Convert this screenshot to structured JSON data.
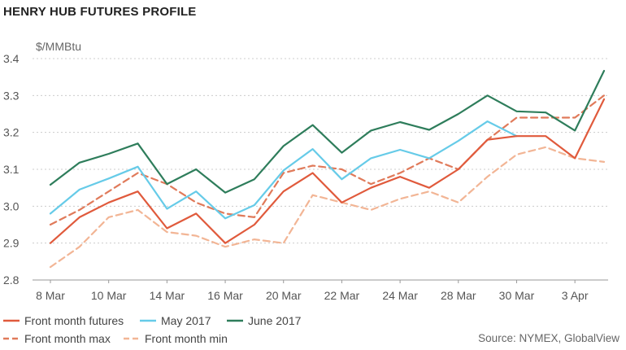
{
  "title": "HENRY HUB FUTURES PROFILE",
  "source": "Source: NYMEX, GlobalView",
  "colors": {
    "front": "#e05a3c",
    "may": "#66cbe8",
    "june": "#2e7d5b",
    "max": "#e07a5a",
    "min": "#f2b595",
    "grid": "#cccccc",
    "axis": "#999999"
  },
  "chart_data": {
    "type": "line",
    "ylabel": "$/MMBtu",
    "ylim": [
      2.8,
      3.4
    ],
    "yticks": [
      2.8,
      2.9,
      3.0,
      3.1,
      3.2,
      3.3,
      3.4
    ],
    "ytick_labels": [
      "2.8",
      "2.9",
      "3.0",
      "3.1",
      "3.2",
      "3.3",
      "3.4"
    ],
    "x": [
      "8 Mar",
      "9 Mar",
      "10 Mar",
      "13 Mar",
      "14 Mar",
      "15 Mar",
      "16 Mar",
      "17 Mar",
      "20 Mar",
      "21 Mar",
      "22 Mar",
      "23 Mar",
      "24 Mar",
      "27 Mar",
      "28 Mar",
      "29 Mar",
      "30 Mar",
      "31 Mar",
      "3 Apr",
      "4 Apr"
    ],
    "xtick_labels": [
      "8 Mar",
      "10 Mar",
      "14 Mar",
      "16 Mar",
      "20 Mar",
      "22 Mar",
      "24 Mar",
      "28 Mar",
      "30 Mar",
      "3 Apr"
    ],
    "grid": true,
    "legend_position": "bottom",
    "series": [
      {
        "name": "Front month futures",
        "color_key": "front",
        "style": "solid",
        "values": [
          2.9,
          2.97,
          3.01,
          3.04,
          2.94,
          2.98,
          2.9,
          2.95,
          3.04,
          3.09,
          3.01,
          3.05,
          3.08,
          3.05,
          3.1,
          3.18,
          3.19,
          3.19,
          3.13,
          3.29
        ]
      },
      {
        "name": "May 2017",
        "color_key": "may",
        "style": "solid",
        "values": [
          2.98,
          3.045,
          3.075,
          3.107,
          2.993,
          3.04,
          2.967,
          3.003,
          3.097,
          3.155,
          3.073,
          3.13,
          3.153,
          3.13,
          3.177,
          3.23,
          3.19,
          null,
          null,
          null
        ]
      },
      {
        "name": "June 2017",
        "color_key": "june",
        "style": "solid",
        "values": [
          3.058,
          3.118,
          3.142,
          3.17,
          3.06,
          3.1,
          3.037,
          3.073,
          3.163,
          3.22,
          3.145,
          3.205,
          3.228,
          3.207,
          3.25,
          3.3,
          3.257,
          3.254,
          3.205,
          3.367
        ]
      },
      {
        "name": "Front month max",
        "color_key": "max",
        "style": "dashed",
        "values": [
          2.95,
          2.99,
          3.04,
          3.09,
          3.06,
          3.01,
          2.98,
          2.97,
          3.09,
          3.11,
          3.1,
          3.06,
          3.09,
          3.13,
          3.1,
          3.18,
          3.24,
          3.24,
          3.24,
          3.3
        ]
      },
      {
        "name": "Front month min",
        "color_key": "min",
        "style": "dashed",
        "values": [
          2.835,
          2.89,
          2.97,
          2.99,
          2.93,
          2.92,
          2.89,
          2.91,
          2.9,
          3.03,
          3.01,
          2.99,
          3.02,
          3.04,
          3.01,
          3.08,
          3.14,
          3.16,
          3.13,
          3.12
        ]
      }
    ]
  }
}
